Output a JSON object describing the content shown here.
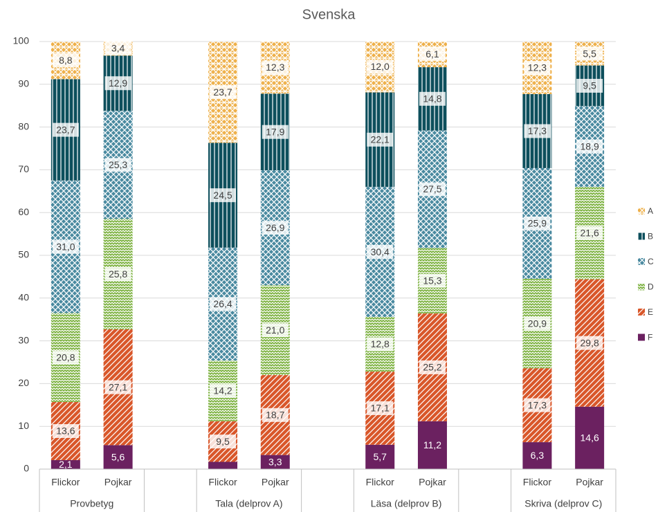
{
  "chart_data": {
    "type": "bar",
    "stacked": true,
    "title": "Svenska",
    "categories": [
      "Flickor",
      "Pojkar",
      null,
      "Flickor",
      "Pojkar",
      null,
      "Flickor",
      "Pojkar",
      null,
      "Flickor",
      "Pojkar"
    ],
    "groups": [
      "Provbetyg",
      "Tala (delprov A)",
      "Läsa (delprov B)",
      "Skriva (delprov C)"
    ],
    "series": [
      {
        "name": "F",
        "color": "#6b2160",
        "pattern": "solid",
        "values": [
          2.1,
          5.6,
          null,
          1.7,
          3.3,
          null,
          5.7,
          11.2,
          null,
          6.3,
          14.6
        ],
        "value_labels": [
          "2,1",
          "5,6",
          null,
          null,
          "3,3",
          null,
          "5,7",
          "11,2",
          null,
          "6,3",
          "14,6"
        ]
      },
      {
        "name": "E",
        "color": "#d9572a",
        "pattern": "diagonal",
        "values": [
          13.6,
          27.1,
          null,
          9.5,
          18.7,
          null,
          17.1,
          25.2,
          null,
          17.3,
          29.8
        ],
        "value_labels": [
          "13,6",
          "27,1",
          null,
          "9,5",
          "18,7",
          null,
          "17,1",
          "25,2",
          null,
          "17,3",
          "29,8"
        ]
      },
      {
        "name": "D",
        "color": "#7ab03c",
        "pattern": "zigzag",
        "values": [
          20.8,
          25.8,
          null,
          14.2,
          21.0,
          null,
          12.8,
          15.3,
          null,
          20.9,
          21.6
        ],
        "value_labels": [
          "20,8",
          "25,8",
          null,
          "14,2",
          "21,0",
          null,
          "12,8",
          "15,3",
          null,
          "20,9",
          "21,6"
        ]
      },
      {
        "name": "C",
        "color": "#4a8aa0",
        "pattern": "diamond",
        "values": [
          31.0,
          25.3,
          null,
          26.4,
          26.9,
          null,
          30.4,
          27.5,
          null,
          25.9,
          18.9
        ],
        "value_labels": [
          "31,0",
          "25,3",
          null,
          "26,4",
          "26,9",
          null,
          "30,4",
          "27,5",
          null,
          "25,9",
          "18,9"
        ]
      },
      {
        "name": "B",
        "color": "#0d4f5c",
        "pattern": "vertical",
        "values": [
          23.7,
          12.9,
          null,
          24.5,
          17.9,
          null,
          22.1,
          14.8,
          null,
          17.3,
          9.5
        ],
        "value_labels": [
          "23,7",
          "12,9",
          null,
          "24,5",
          "17,9",
          null,
          "22,1",
          "14,8",
          null,
          "17,3",
          "9,5"
        ]
      },
      {
        "name": "A",
        "color": "#eeb04a",
        "pattern": "crosshatch",
        "values": [
          8.8,
          3.4,
          null,
          23.7,
          12.3,
          null,
          12.0,
          6.1,
          null,
          12.3,
          5.5
        ],
        "value_labels": [
          "8,8",
          "3,4",
          null,
          "23,7",
          "12,3",
          null,
          "12,0",
          "6,1",
          null,
          "12,3",
          "5,5"
        ]
      }
    ],
    "ylim": [
      0,
      100
    ],
    "yticks": [
      0,
      10,
      20,
      30,
      40,
      50,
      60,
      70,
      80,
      90,
      100
    ],
    "grid": true,
    "legend": "right"
  }
}
